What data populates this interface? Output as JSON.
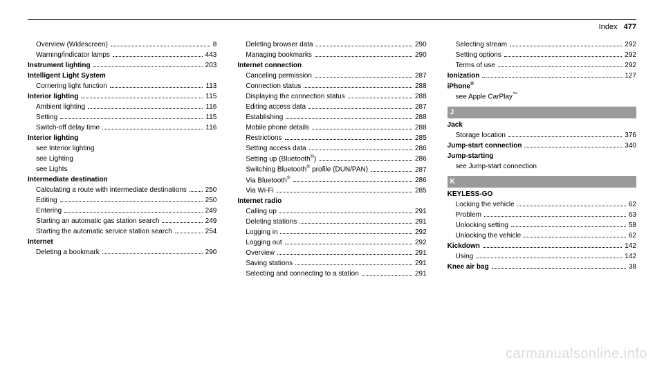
{
  "header": {
    "label": "Index",
    "page": "477"
  },
  "watermark": "carmanualsonline.info",
  "letters": {
    "J": "J",
    "K": "K"
  },
  "col1": [
    {
      "t": "sub",
      "label": "Overview (Widescreen)",
      "pg": "8"
    },
    {
      "t": "sub",
      "label": "Warning/indicator lamps",
      "pg": "443"
    },
    {
      "t": "top",
      "label": "Instrument lighting",
      "pg": "203"
    },
    {
      "t": "top",
      "label": "Intelligent Light System"
    },
    {
      "t": "sub",
      "label": "Cornering light function",
      "pg": "113"
    },
    {
      "t": "top",
      "label": "Interior lighting",
      "pg": "115"
    },
    {
      "t": "sub",
      "label": "Ambient lighting",
      "pg": "116"
    },
    {
      "t": "sub",
      "label": "Setting",
      "pg": "115"
    },
    {
      "t": "sub",
      "label": "Switch-off delay time",
      "pg": "116"
    },
    {
      "t": "top",
      "label": "Interior lighting"
    },
    {
      "t": "see",
      "label": "see Interior lighting"
    },
    {
      "t": "see",
      "label": "see Lighting"
    },
    {
      "t": "see",
      "label": "see Lights"
    },
    {
      "t": "top",
      "label": "Intermediate destination"
    },
    {
      "t": "sub",
      "label": "Calculating a route with intermediate destinations",
      "pg": "250"
    },
    {
      "t": "sub",
      "label": "Editing",
      "pg": "250"
    },
    {
      "t": "sub",
      "label": "Entering",
      "pg": "249"
    },
    {
      "t": "sub",
      "label": "Starting an automatic gas station search",
      "pg": "249"
    },
    {
      "t": "sub",
      "label": "Starting the automatic service station search",
      "pg": "254"
    },
    {
      "t": "top",
      "label": "Internet"
    },
    {
      "t": "sub",
      "label": "Deleting a bookmark",
      "pg": "290"
    }
  ],
  "col2": [
    {
      "t": "sub",
      "label": "Deleting browser data",
      "pg": "290"
    },
    {
      "t": "sub",
      "label": "Managing bookmarks",
      "pg": "290"
    },
    {
      "t": "top",
      "label": "Internet connection"
    },
    {
      "t": "sub",
      "label": "Canceling permission",
      "pg": "287"
    },
    {
      "t": "sub",
      "label": "Connection status",
      "pg": "288"
    },
    {
      "t": "sub",
      "label": "Displaying the connection status",
      "pg": "288"
    },
    {
      "t": "sub",
      "label": "Editing access data",
      "pg": "287"
    },
    {
      "t": "sub",
      "label": "Establishing",
      "pg": "288"
    },
    {
      "t": "sub",
      "label": "Mobile phone details",
      "pg": "288"
    },
    {
      "t": "sub",
      "label": "Restrictions",
      "pg": "285"
    },
    {
      "t": "sub",
      "label": "Setting access data",
      "pg": "286"
    },
    {
      "t": "sub",
      "label": "Setting up (Bluetooth®)",
      "pg": "286",
      "html": true
    },
    {
      "t": "sub",
      "label": "Switching Bluetooth® profile (DUN/PAN)",
      "pg": "287",
      "html": true
    },
    {
      "t": "sub",
      "label": "Via Bluetooth®",
      "pg": "286",
      "html": true
    },
    {
      "t": "sub",
      "label": "Via Wi-Fi",
      "pg": "285"
    },
    {
      "t": "top",
      "label": "Internet radio"
    },
    {
      "t": "sub",
      "label": "Calling up",
      "pg": "291"
    },
    {
      "t": "sub",
      "label": "Deleting stations",
      "pg": "291"
    },
    {
      "t": "sub",
      "label": "Logging in",
      "pg": "292"
    },
    {
      "t": "sub",
      "label": "Logging out",
      "pg": "292"
    },
    {
      "t": "sub",
      "label": "Overview",
      "pg": "291"
    },
    {
      "t": "sub",
      "label": "Saving stations",
      "pg": "291"
    },
    {
      "t": "sub",
      "label": "Selecting and connecting to a station",
      "pg": "291"
    }
  ],
  "col3": [
    {
      "t": "sub",
      "label": "Selecting stream",
      "pg": "292"
    },
    {
      "t": "sub",
      "label": "Setting options",
      "pg": "292"
    },
    {
      "t": "sub",
      "label": "Terms of use",
      "pg": "292"
    },
    {
      "t": "top",
      "label": "Ionization",
      "pg": "127"
    },
    {
      "t": "top",
      "label": "iPhone®",
      "html": true
    },
    {
      "t": "see",
      "label": "see Apple CarPlay™",
      "html": true
    },
    {
      "t": "letter",
      "key": "J"
    },
    {
      "t": "top",
      "label": "Jack"
    },
    {
      "t": "sub",
      "label": "Storage location",
      "pg": "376"
    },
    {
      "t": "top",
      "label": "Jump-start connection",
      "pg": "340"
    },
    {
      "t": "top",
      "label": "Jump-starting"
    },
    {
      "t": "see",
      "label": "see Jump-start connection"
    },
    {
      "t": "letter",
      "key": "K"
    },
    {
      "t": "top",
      "label": "KEYLESS-GO"
    },
    {
      "t": "sub",
      "label": "Locking the vehicle",
      "pg": "62"
    },
    {
      "t": "sub",
      "label": "Problem",
      "pg": "63"
    },
    {
      "t": "sub",
      "label": "Unlocking setting",
      "pg": "58"
    },
    {
      "t": "sub",
      "label": "Unlocking the vehicle",
      "pg": "62"
    },
    {
      "t": "top",
      "label": "Kickdown",
      "pg": "142"
    },
    {
      "t": "sub",
      "label": "Using",
      "pg": "142"
    },
    {
      "t": "top",
      "label": "Knee air bag",
      "pg": "38"
    }
  ]
}
